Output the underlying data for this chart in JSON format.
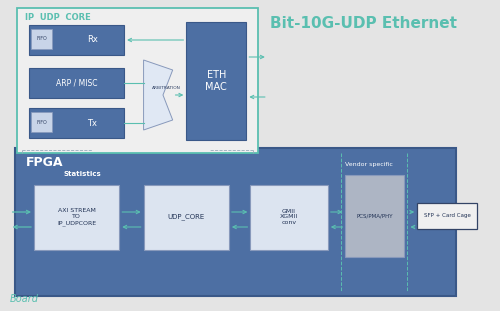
{
  "bg_color": "#e4e4e4",
  "title": "Bit-10G-UDP Ethernet",
  "title_color": "#5abfb0",
  "title_fontsize": 11,
  "board_label": "Board",
  "board_label_color": "#5abfb0",
  "fpga_bg": "#4d6fa3",
  "fpga_label": "FPGA",
  "fpga_label_color": "#ffffff",
  "ip_udp_border": "#5abfb0",
  "ip_udp_bg": "#efefef",
  "ip_udp_label": "IP  UDP  CORE",
  "ip_udp_label_color": "#5abfb0",
  "blue_block_color": "#4d6fa3",
  "white_block_color": "#dce4f0",
  "gray_block_color": "#adb5c4",
  "eth_mac_label": "ETH\nMAC",
  "rx_label": "Rx",
  "tx_label": "Tx",
  "arp_label": "ARP / MISC",
  "fifo_label": "FIFO",
  "arbitration_label": "ARBITRATION",
  "stats_label": "Statistics",
  "axi_label": "AXI STREAM\nTO\nIP_UDPCORE",
  "udp_core_label": "UDP_CORE",
  "gmii_label": "GMII\nXGMII\nconv",
  "pcs_label": "PCS/PMA/PHY",
  "sfp_label": "SFP + Card Cage",
  "vendor_label": "Vendor specific",
  "arrow_color": "#5abfb0",
  "dash_color": "#5abfb0",
  "connect_dash_color": "#99aabb"
}
